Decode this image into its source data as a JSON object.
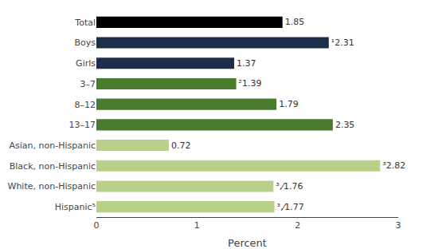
{
  "chart_data": {
    "type": "bar",
    "orientation": "horizontal",
    "categories": [
      "Total",
      "Boys",
      "Girls",
      "3–7",
      "8–12",
      "13–17",
      "Asian, non-Hispanic",
      "Black, non-Hispanic",
      "White, non-Hispanic",
      "Hispanic⁵"
    ],
    "values": [
      1.85,
      2.31,
      1.37,
      1.39,
      1.79,
      2.35,
      0.72,
      2.82,
      1.76,
      1.77
    ],
    "value_labels": [
      "1.85",
      "¹2.31",
      "1.37",
      "²1.39",
      "1.79",
      "2.35",
      "0.72",
      "³2.82",
      "³,⁄1.76",
      "³,⁄1.77"
    ],
    "colors": [
      "#000000",
      "#1c2f4a",
      "#1c2f4a",
      "#4a7c2e",
      "#4a7c2e",
      "#4a7c2e",
      "#b8d08a",
      "#b8d08a",
      "#b8d08a",
      "#b8d08a"
    ],
    "xlim": [
      0,
      3
    ],
    "xticks": [
      0,
      1,
      2,
      3
    ],
    "xlabel": "Percent",
    "data_labels": true,
    "grid": false
  }
}
